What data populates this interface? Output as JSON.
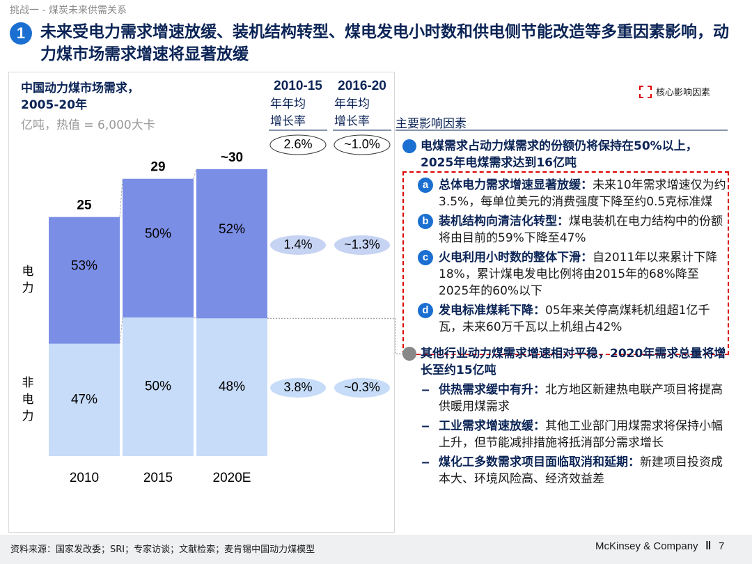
{
  "header": {
    "section": "挑战一 - 煤炭未来供需关系",
    "number": "1",
    "title": "未来受电力需求增速放缓、装机结构转型、煤电发电小时数和供电侧节能改造等多重因素影响，动力煤市场需求增速将显著放缓"
  },
  "chart_data": {
    "type": "bar",
    "title": "中国动力煤市场需求，2005-20年",
    "subtitle": "亿吨，热值 = 6,000大卡",
    "categories": [
      "2010",
      "2015",
      "2020E"
    ],
    "totals": [
      25,
      29,
      30
    ],
    "total_labels": [
      "25",
      "29",
      "~30"
    ],
    "series": [
      {
        "name": "电力",
        "color": "#7b8ee6",
        "values": [
          53,
          50,
          52
        ],
        "value_labels": [
          "53%",
          "50%",
          "52%"
        ]
      },
      {
        "name": "非电力",
        "color": "#c6dcf8",
        "values": [
          47,
          50,
          48
        ],
        "value_labels": [
          "47%",
          "50%",
          "48%"
        ]
      }
    ]
  },
  "growth": {
    "columns": [
      {
        "period": "2010-15",
        "label": "年年均增长率"
      },
      {
        "period": "2016-20",
        "label": "年年均增长率"
      }
    ],
    "rows": [
      [
        "2.6%",
        "~1.0%"
      ],
      [
        "1.4%",
        "~1.3%"
      ],
      [
        "3.8%",
        "~0.3%"
      ]
    ]
  },
  "factors_title": "主要影响因素",
  "legend": "核心影响因素",
  "factors": [
    {
      "text": "电煤需求占动力煤需求的份额仍将保持在50%以上，2025年电煤需求达到16亿吨",
      "items": [
        {
          "marker": "a",
          "heading": "总体电力需求增速显著放缓：",
          "text": "未来10年需求增速仅为约3.5%，每单位美元的消费强度下降至约0.5克标准煤"
        },
        {
          "marker": "b",
          "heading": "装机结构向清洁化转型：",
          "text": "煤电装机在电力结构中的份额将由目前的59%下降至47%"
        },
        {
          "marker": "c",
          "heading": "火电利用小时数的整体下滑：",
          "text": "自2011年以来累计下降18%，累计煤电发电比例将由2015年的68%降至2025年的60%以下"
        },
        {
          "marker": "d",
          "heading": "发电标准煤耗下降：",
          "text": "05年来关停高煤耗机组超1亿千瓦，未来60万千瓦以上机组占42%"
        }
      ]
    },
    {
      "text": "其他行业动力煤需求增速相对平稳，2020年需求总量将增长至约15亿吨",
      "items": [
        {
          "marker": "–",
          "heading": "供热需求缓中有升：",
          "text": "北方地区新建热电联产项目将提高供暖用煤需求"
        },
        {
          "marker": "–",
          "heading": "工业需求增速放缓：",
          "text": "其他工业部门用煤需求将保持小幅上升，但节能减排措施将抵消部分需求增长"
        },
        {
          "marker": "–",
          "heading": "煤化工多数需求项目面临取消和延期：",
          "text": "新建项目投资成本大、环境风险高、经济效益差"
        }
      ]
    }
  ],
  "footer": {
    "source": "资料来源：国家发改委；SRI；专家访谈；文献检索；麦肯锡中国动力煤模型",
    "company": "McKinsey & Company",
    "page": "7"
  }
}
